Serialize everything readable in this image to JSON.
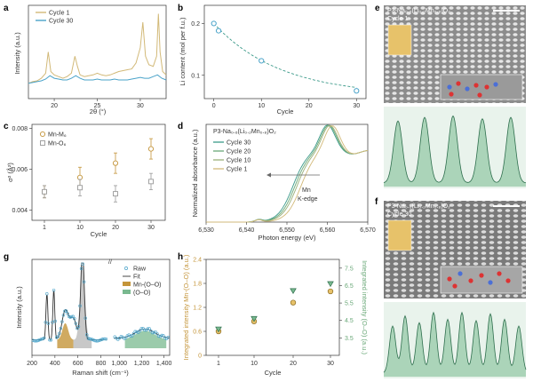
{
  "colors": {
    "tan": "#d2b978",
    "tan_dark": "#c4953a",
    "blue": "#4aa3c9",
    "teal": "#3c9a8a",
    "gray": "#999999",
    "green_light": "#cfe6d5",
    "green": "#79b98f",
    "olive": "#b8b37a",
    "axis_green": "#6aa878"
  },
  "panel_labels": [
    "a",
    "b",
    "c",
    "d",
    "e",
    "f",
    "g",
    "h"
  ],
  "chart_data": [
    {
      "id": "a",
      "type": "line",
      "xlabel": "2θ (°)",
      "ylabel": "Intensity (a.u.)",
      "xlim": [
        17,
        33
      ],
      "xticks": [
        20,
        25,
        30
      ],
      "series": [
        {
          "name": "Cycle 1",
          "color": "#d2b978",
          "x": [
            17,
            17.5,
            18,
            18.5,
            19,
            19.3,
            19.6,
            20,
            20.5,
            21,
            21.5,
            22,
            22.4,
            22.7,
            23,
            23.5,
            24,
            24.5,
            25,
            25.5,
            26,
            26.5,
            27,
            27.5,
            28,
            28.5,
            29,
            29.5,
            30,
            30.3,
            30.6,
            31,
            31.5,
            31.9,
            32.1,
            32.3,
            32.6,
            33
          ],
          "y": [
            0.18,
            0.2,
            0.21,
            0.24,
            0.3,
            0.55,
            0.32,
            0.28,
            0.26,
            0.24,
            0.26,
            0.3,
            0.5,
            0.38,
            0.28,
            0.26,
            0.27,
            0.28,
            0.3,
            0.28,
            0.27,
            0.28,
            0.3,
            0.32,
            0.33,
            0.34,
            0.35,
            0.42,
            0.6,
            0.9,
            0.5,
            0.4,
            0.38,
            0.5,
            1.0,
            0.55,
            0.32,
            0.28
          ]
        },
        {
          "name": "Cycle 30",
          "color": "#4aa3c9",
          "x": [
            17,
            17.5,
            18,
            18.5,
            19,
            19.5,
            20,
            20.5,
            21,
            21.5,
            22,
            22.5,
            23,
            23.5,
            24,
            24.5,
            25,
            25.5,
            26,
            26.5,
            27,
            27.5,
            28,
            28.5,
            29,
            29.5,
            30,
            30.5,
            31,
            31.5,
            32,
            32.5,
            33
          ],
          "y": [
            0.18,
            0.19,
            0.2,
            0.21,
            0.23,
            0.27,
            0.24,
            0.23,
            0.22,
            0.22,
            0.24,
            0.27,
            0.24,
            0.22,
            0.22,
            0.22,
            0.23,
            0.22,
            0.22,
            0.22,
            0.23,
            0.22,
            0.22,
            0.22,
            0.23,
            0.24,
            0.25,
            0.24,
            0.24,
            0.26,
            0.28,
            0.24,
            0.22
          ]
        }
      ]
    },
    {
      "id": "b",
      "type": "scatter",
      "xlabel": "Cycle",
      "ylabel": "Li content (mol per f.u.)",
      "xlim": [
        -2,
        32
      ],
      "ylim": [
        0.055,
        0.235
      ],
      "xticks": [
        0,
        10,
        20,
        30
      ],
      "yticks": [
        0.1,
        0.2
      ],
      "x": [
        0,
        1,
        10,
        30
      ],
      "y": [
        0.2,
        0.186,
        0.128,
        0.07
      ]
    },
    {
      "id": "c",
      "type": "scatter",
      "xlabel": "Cycle",
      "ylabel": "σ² (Å²)",
      "ylim": [
        0.0035,
        0.0082
      ],
      "yticks": [
        0.004,
        0.006,
        0.008
      ],
      "categories": [
        "1",
        "10",
        "20",
        "30"
      ],
      "series": [
        {
          "name": "Mn-M₆",
          "color": "#c4953a",
          "values": [
            0.0049,
            0.0056,
            0.0063,
            0.007
          ],
          "err": [
            0.0003,
            0.0005,
            0.0005,
            0.0005
          ]
        },
        {
          "name": "Mn-O₆",
          "color": "#999999",
          "values": [
            0.0049,
            0.0051,
            0.0048,
            0.0054
          ],
          "err": [
            0.0003,
            0.0004,
            0.0004,
            0.0004
          ]
        }
      ]
    },
    {
      "id": "d",
      "type": "line",
      "title": "P3-Na₀.₆(Li₀.₂Mn₀.₈)O₂",
      "xlabel": "Photon energy (eV)",
      "ylabel": "Normalized absorbance (a.u.)",
      "xlim": [
        6530,
        6570
      ],
      "xticks": [
        6530,
        6540,
        6550,
        6560,
        6570
      ],
      "annotation": [
        "Mn",
        "K-edge"
      ],
      "series": [
        {
          "name": "Cycle 30",
          "color": "#3c9a8a",
          "shift": 0.0
        },
        {
          "name": "Cycle 20",
          "color": "#6aa878",
          "shift": 0.5
        },
        {
          "name": "Cycle 10",
          "color": "#9bb07a",
          "shift": 1.0
        },
        {
          "name": "Cycle 1",
          "color": "#d2b978",
          "shift": 2.0
        }
      ]
    },
    {
      "id": "g",
      "type": "line",
      "xlabel": "Raman shift (cm⁻¹)",
      "ylabel": "Intensity (a.u.)",
      "xticks_left": [
        200,
        400,
        600,
        800
      ],
      "xticks_right": [
        1000,
        1200,
        1400
      ],
      "legend": [
        "Raw",
        "Fit",
        "Mn-(O–O)",
        "(O–O)"
      ]
    },
    {
      "id": "h",
      "type": "scatter",
      "xlabel": "Cycle",
      "ylabel": "Integrated intensity Mn-(O–O) (a.u.)",
      "ylabel_right": "Integrated intensity (O–O) (a.u.)",
      "ylim": [
        0,
        2.4
      ],
      "yticks": [
        0,
        0.6,
        1.2,
        1.8,
        2.4
      ],
      "ylim_right": [
        2.5,
        8
      ],
      "yticks_right": [
        3.5,
        4.5,
        5.5,
        6.5,
        7.5
      ],
      "categories": [
        "1",
        "10",
        "20",
        "30"
      ],
      "series": [
        {
          "name": "Mn-(O–O)",
          "marker": "circle",
          "color": "#c4953a",
          "values": [
            0.6,
            0.85,
            1.32,
            1.6
          ]
        },
        {
          "name": "(O–O)",
          "marker": "triangle",
          "color": "#6aa878",
          "values": [
            4.0,
            4.6,
            6.2,
            6.6
          ]
        }
      ]
    }
  ],
  "images": {
    "e": {
      "title": "P3-Na₀.₆(Li₀.₂Mn₀.₈)O₂",
      "subtitle": "Cycle 1"
    },
    "f": {
      "title": "P3-Na₀.₆(Li₀.₂Mn₀.₈)O₂",
      "subtitle": "Cycle 30"
    }
  }
}
